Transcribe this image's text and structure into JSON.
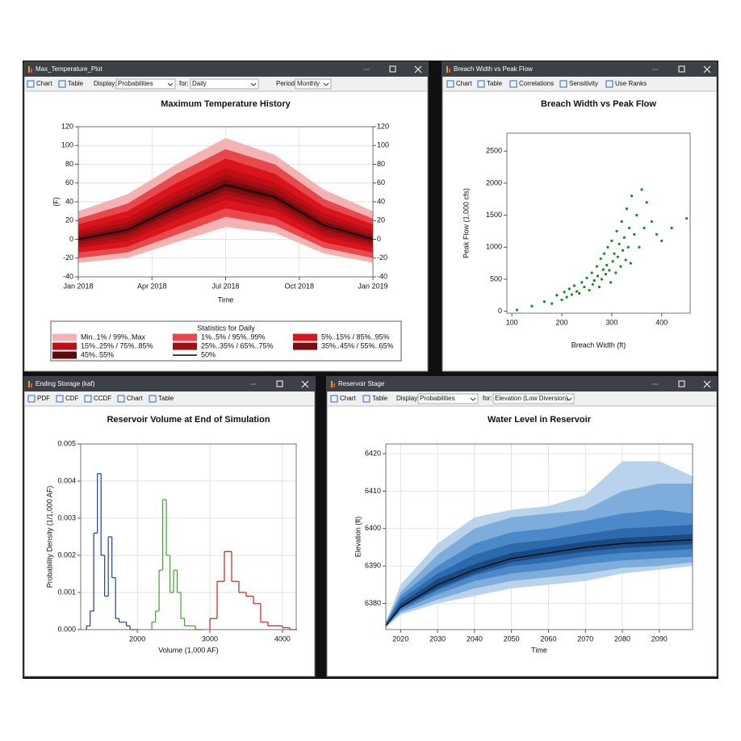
{
  "windows": [
    {
      "title": "Max_Temperature_Plot",
      "toolbar": [
        "Chart",
        "Table",
        "Display:",
        "Probabilities",
        "for:",
        "Daily",
        "Period:",
        "Monthly"
      ],
      "chart": {
        "type": "band",
        "title": "Maximum Temperature History",
        "x_label": "Time",
        "y_label": "(F)",
        "x": [
          0,
          2,
          4,
          6,
          8,
          10,
          12
        ],
        "xlim": [
          0,
          12
        ],
        "xticks": [
          {
            "value": 0,
            "label": "Jan 2018"
          },
          {
            "value": 3,
            "label": "Apr 2018"
          },
          {
            "value": 6,
            "label": "Jul 2018"
          },
          {
            "value": 9,
            "label": "Oct 2018"
          },
          {
            "value": 12,
            "label": "Jan 2019"
          }
        ],
        "ylim": [
          -40,
          120
        ],
        "yticks": [
          -40,
          -20,
          0,
          20,
          40,
          60,
          80,
          100,
          120
        ],
        "y2lim": [
          -40,
          120
        ],
        "y2ticks": [
          -40,
          -20,
          0,
          20,
          40,
          60,
          80,
          100,
          120
        ],
        "grid": true,
        "legend_title": "Statistics for Daily",
        "bands": [
          {
            "name": "Min..1% / 99%..Max",
            "color": "#f3b3b3",
            "upper": [
              30,
              48,
              80,
              108,
              90,
              53,
              30
            ],
            "lower": [
              -25,
              -20,
              -3,
              13,
              7,
              -15,
              -25
            ]
          },
          {
            "name": "1%..5% / 95%..99%",
            "color": "#e8474b",
            "upper": [
              22,
              38,
              70,
              96,
              80,
              43,
              22
            ],
            "lower": [
              -20,
              -14,
              5,
              24,
              15,
              -9,
              -20
            ]
          },
          {
            "name": "5%..15% / 85%..95%",
            "color": "#d9141c",
            "upper": [
              16,
              30,
              60,
              86,
              70,
              35,
              16
            ],
            "lower": [
              -14,
              -8,
              13,
              33,
              23,
              -3,
              -14
            ]
          },
          {
            "name": "15%..25% / 75%..85%",
            "color": "#bf0f16",
            "upper": [
              10,
              23,
              51,
              76,
              61,
              28,
              10
            ],
            "lower": [
              -9,
              -2,
              21,
              42,
              31,
              3,
              -9
            ]
          },
          {
            "name": "25%..35% / 65%..75%",
            "color": "#9e1014",
            "upper": [
              6,
              18,
              45,
              69,
              55,
              23,
              6
            ],
            "lower": [
              -6,
              2,
              26,
              48,
              36,
              7,
              -6
            ]
          },
          {
            "name": "35%..45% / 55%..65%",
            "color": "#7c0c10",
            "upper": [
              3,
              14,
              40,
              64,
              50,
              19,
              3
            ],
            "lower": [
              -3,
              6,
              30,
              52,
              40,
              11,
              -3
            ]
          },
          {
            "name": "45%..55%",
            "color": "#5a090c",
            "upper": [
              1,
              11,
              37,
              60,
              47,
              16,
              1
            ],
            "lower": [
              -1,
              9,
              33,
              56,
              43,
              14,
              -1
            ]
          }
        ],
        "median_name": "50%",
        "median_color": "#000000",
        "median": [
          0,
          10,
          35,
          58,
          45,
          15,
          0
        ]
      }
    },
    {
      "title": "Breach Width vs Peak Flow",
      "toolbar": [
        "Chart",
        "Table",
        "Correlations",
        "Sensitivity",
        "Use Ranks"
      ],
      "chart": {
        "type": "scatter",
        "title": "Breach Width vs Peak Flow",
        "x_label": "Breach Width (ft)",
        "y_label": "Peak Flow (1,000 cfs)",
        "color": "#17882c",
        "xlim": [
          90,
          457
        ],
        "xticks": [
          100,
          200,
          300,
          400
        ],
        "ylim": [
          -30,
          2780
        ],
        "yticks": [
          0,
          500,
          1000,
          1500,
          2000,
          2500
        ],
        "grid": false,
        "x": [
          110,
          140,
          165,
          180,
          190,
          200,
          205,
          210,
          215,
          220,
          225,
          230,
          235,
          240,
          245,
          250,
          255,
          260,
          262,
          265,
          270,
          272,
          275,
          278,
          280,
          283,
          285,
          288,
          290,
          292,
          295,
          298,
          300,
          302,
          305,
          308,
          310,
          312,
          315,
          318,
          320,
          322,
          325,
          328,
          330,
          333,
          335,
          338,
          340,
          345,
          350,
          355,
          360,
          365,
          370,
          380,
          390,
          400,
          420,
          450
        ],
        "values": [
          20,
          80,
          150,
          120,
          250,
          180,
          300,
          220,
          350,
          260,
          400,
          310,
          280,
          450,
          380,
          520,
          330,
          600,
          420,
          480,
          700,
          550,
          380,
          820,
          500,
          650,
          900,
          580,
          720,
          1000,
          640,
          450,
          1100,
          780,
          900,
          600,
          1250,
          850,
          1050,
          700,
          1400,
          950,
          1150,
          800,
          1600,
          1000,
          1300,
          750,
          1800,
          1200,
          1500,
          1000,
          1900,
          1300,
          1700,
          1400,
          1200,
          1100,
          1300,
          1450
        ]
      }
    },
    {
      "title": "Ending Storage (kaf)",
      "toolbar": [
        "PDF",
        "CDF",
        "CCDF",
        "Chart",
        "Table"
      ],
      "chart": {
        "type": "histogram",
        "title": "Reservoir Volume at End of Simulation",
        "x_label": "Volume (1,000 AF)",
        "y_label": "Probability Density (1/1,000 AF)",
        "xlim": [
          1220,
          4190
        ],
        "xticks": [
          2000,
          3000,
          4000
        ],
        "ylim": [
          0,
          0.005
        ],
        "yticks": [
          {
            "value": 0,
            "label": "0.000"
          },
          {
            "value": 0.001,
            "label": "0.001"
          },
          {
            "value": 0.002,
            "label": "0.002"
          },
          {
            "value": 0.003,
            "label": "0.003"
          },
          {
            "value": 0.004,
            "label": "0.004"
          },
          {
            "value": 0.005,
            "label": "0.005"
          }
        ],
        "grid": true,
        "series": [
          {
            "color": "#1f3fa0",
            "bins": [
              1300,
              1350,
              1400,
              1450,
              1500,
              1550,
              1600,
              1650,
              1700,
              1750,
              1800,
              1850,
              1900,
              1950,
              2000
            ],
            "values": [
              0.0001,
              0.0005,
              0.0026,
              0.0042,
              0.002,
              0.0009,
              0.0025,
              0.0014,
              0.0003,
              0.0002,
              0.0002,
              0.0001,
              0,
              0
            ]
          },
          {
            "color": "#3aaa2a",
            "bins": [
              2200,
              2250,
              2300,
              2350,
              2400,
              2450,
              2500,
              2550,
              2600,
              2650,
              2700,
              2750,
              2800,
              2850,
              2900
            ],
            "values": [
              0.0002,
              0.0005,
              0.0016,
              0.0035,
              0.002,
              0.001,
              0.0016,
              0.001,
              0.0003,
              0.0001,
              0.0001,
              0.0001,
              0,
              0
            ]
          },
          {
            "color": "#d41c1c",
            "bins": [
              3000,
              3100,
              3200,
              3300,
              3400,
              3500,
              3600,
              3700,
              3800,
              3900,
              4000,
              4100,
              4200
            ],
            "values": [
              0.0003,
              0.0013,
              0.0021,
              0.0013,
              0.001,
              0.0009,
              0.0007,
              0.0002,
              0.0001,
              0.0001,
              5e-05,
              0
            ]
          }
        ]
      }
    },
    {
      "title": "Reservoir Stage",
      "toolbar": [
        "Chart",
        "Table",
        "Display:",
        "Probabilities",
        "for:",
        "Elevation (Low Diversion)"
      ],
      "chart": {
        "type": "band",
        "title": "Water Level in Reservoir",
        "x_label": "Time",
        "y_label": "Elevation (ft)",
        "x": [
          2016,
          2020,
          2030,
          2040,
          2050,
          2060,
          2070,
          2080,
          2090,
          2099
        ],
        "xlim": [
          2016,
          2099
        ],
        "xticks": [
          2020,
          2030,
          2040,
          2050,
          2060,
          2070,
          2080,
          2090
        ],
        "ylim": [
          6373,
          6422.6
        ],
        "yticks": [
          6380,
          6390,
          6400,
          6410,
          6420
        ],
        "grid": true,
        "bands": [
          {
            "color": "#b9d3ec",
            "upper": [
              6375,
              6385,
              6396,
              6403,
              6405,
              6406,
              6409,
              6418,
              6418,
              6414
            ],
            "lower": [
              6373.5,
              6377,
              6380,
              6382,
              6384,
              6385,
              6386,
              6388,
              6389,
              6390
            ]
          },
          {
            "color": "#7faddb",
            "upper": [
              6375,
              6383,
              6393,
              6400,
              6403,
              6404,
              6405,
              6410,
              6412,
              6412
            ],
            "lower": [
              6373.8,
              6377.5,
              6381,
              6384,
              6386,
              6387,
              6388,
              6389.5,
              6390,
              6391
            ]
          },
          {
            "color": "#4c89c8",
            "upper": [
              6374.8,
              6382,
              6390,
              6396,
              6399,
              6400,
              6402,
              6404,
              6405,
              6404
            ],
            "lower": [
              6373.9,
              6378,
              6382.5,
              6386,
              6388,
              6389,
              6390.5,
              6391.5,
              6392,
              6392.5
            ]
          },
          {
            "color": "#2d69ab",
            "upper": [
              6374.5,
              6381,
              6388,
              6393,
              6396,
              6397,
              6398.5,
              6400,
              6400.5,
              6401
            ],
            "lower": [
              6374,
              6378.5,
              6383.5,
              6387.5,
              6390,
              6391,
              6392.5,
              6393.5,
              6394,
              6394.5
            ]
          },
          {
            "color": "#1a4a82",
            "upper": [
              6374.3,
              6380,
              6386.5,
              6390.5,
              6393.5,
              6395,
              6396.5,
              6397.5,
              6398,
              6398.5
            ],
            "lower": [
              6374.1,
              6378.8,
              6384,
              6388,
              6391,
              6392.5,
              6393.8,
              6394.8,
              6395.3,
              6395.8
            ]
          }
        ],
        "median_color": "#000000",
        "median": [
          6374,
          6379,
          6385,
          6389,
          6392,
          6393.5,
          6395,
          6396,
          6396.5,
          6397
        ]
      }
    }
  ]
}
